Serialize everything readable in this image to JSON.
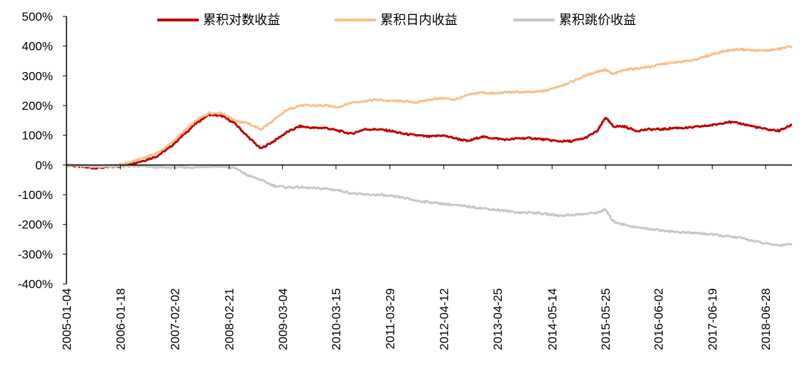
{
  "chart_data": {
    "type": "line",
    "title": "",
    "xlabel": "",
    "ylabel": "",
    "ylim": [
      -400,
      500
    ],
    "y_ticks": [
      "500%",
      "400%",
      "300%",
      "200%",
      "100%",
      "0%",
      "-100%",
      "-200%",
      "-300%",
      "-400%"
    ],
    "y_tick_values": [
      500,
      400,
      300,
      200,
      100,
      0,
      -100,
      -200,
      -300,
      -400
    ],
    "x_range": [
      2005.0,
      2019.0
    ],
    "x_ticks": [
      "2005-01-04",
      "2006-01-18",
      "2007-02-02",
      "2008-02-21",
      "2009-03-04",
      "2010-03-15",
      "2011-03-29",
      "2012-04-12",
      "2013-04-25",
      "2014-05-14",
      "2015-05-25",
      "2016-06-02",
      "2017-06-19",
      "2018-06-28"
    ],
    "x_tick_positions": [
      2005.0,
      2006.04,
      2007.09,
      2008.14,
      2009.17,
      2010.2,
      2011.24,
      2012.28,
      2013.32,
      2014.37,
      2015.4,
      2016.42,
      2017.46,
      2018.49
    ],
    "legend_position": "top",
    "series": [
      {
        "name": "累积对数收益",
        "color": "#c00000",
        "x": [
          2005.0,
          2005.25,
          2005.5,
          2005.75,
          2006.0,
          2006.25,
          2006.5,
          2006.75,
          2007.0,
          2007.25,
          2007.5,
          2007.75,
          2008.0,
          2008.25,
          2008.5,
          2008.75,
          2009.0,
          2009.25,
          2009.5,
          2009.75,
          2010.0,
          2010.25,
          2010.5,
          2010.75,
          2011.0,
          2011.25,
          2011.5,
          2011.75,
          2012.0,
          2012.25,
          2012.5,
          2012.75,
          2013.0,
          2013.25,
          2013.5,
          2013.75,
          2014.0,
          2014.25,
          2014.5,
          2014.75,
          2015.0,
          2015.25,
          2015.4,
          2015.55,
          2015.75,
          2016.0,
          2016.25,
          2016.5,
          2016.75,
          2017.0,
          2017.25,
          2017.5,
          2017.75,
          2018.0,
          2018.25,
          2018.5,
          2018.75,
          2019.0
        ],
        "values": [
          0,
          -5,
          -10,
          -8,
          -5,
          5,
          15,
          30,
          60,
          100,
          140,
          170,
          165,
          140,
          95,
          55,
          80,
          110,
          130,
          125,
          125,
          115,
          105,
          120,
          120,
          115,
          105,
          100,
          95,
          100,
          90,
          80,
          95,
          90,
          85,
          90,
          90,
          85,
          80,
          80,
          90,
          115,
          160,
          130,
          130,
          115,
          120,
          120,
          125,
          125,
          130,
          135,
          145,
          140,
          130,
          120,
          115,
          135
        ]
      },
      {
        "name": "累积日内收益",
        "color": "#f8c08e",
        "x": [
          2005.0,
          2005.25,
          2005.5,
          2005.75,
          2006.0,
          2006.25,
          2006.5,
          2006.75,
          2007.0,
          2007.25,
          2007.5,
          2007.75,
          2008.0,
          2008.25,
          2008.5,
          2008.75,
          2009.0,
          2009.25,
          2009.5,
          2009.75,
          2010.0,
          2010.25,
          2010.5,
          2010.75,
          2011.0,
          2011.25,
          2011.5,
          2011.75,
          2012.0,
          2012.25,
          2012.5,
          2012.75,
          2013.0,
          2013.25,
          2013.5,
          2013.75,
          2014.0,
          2014.25,
          2014.5,
          2014.75,
          2015.0,
          2015.25,
          2015.4,
          2015.55,
          2015.75,
          2016.0,
          2016.25,
          2016.5,
          2016.75,
          2017.0,
          2017.25,
          2017.5,
          2017.75,
          2018.0,
          2018.25,
          2018.5,
          2018.75,
          2019.0
        ],
        "values": [
          0,
          -2,
          -5,
          -3,
          0,
          10,
          25,
          40,
          70,
          110,
          150,
          175,
          175,
          150,
          140,
          120,
          150,
          185,
          200,
          200,
          200,
          195,
          210,
          215,
          220,
          215,
          215,
          210,
          220,
          225,
          220,
          235,
          245,
          240,
          245,
          245,
          245,
          250,
          265,
          280,
          300,
          315,
          320,
          305,
          320,
          325,
          330,
          340,
          345,
          350,
          360,
          375,
          385,
          390,
          385,
          385,
          390,
          400
        ]
      },
      {
        "name": "累积跳价收益",
        "color": "#c8c8c8",
        "x": [
          2005.0,
          2005.25,
          2005.5,
          2005.75,
          2006.0,
          2006.25,
          2006.5,
          2006.75,
          2007.0,
          2007.25,
          2007.5,
          2007.75,
          2008.0,
          2008.25,
          2008.5,
          2008.75,
          2009.0,
          2009.25,
          2009.5,
          2009.75,
          2010.0,
          2010.25,
          2010.5,
          2010.75,
          2011.0,
          2011.25,
          2011.5,
          2011.75,
          2012.0,
          2012.25,
          2012.5,
          2012.75,
          2013.0,
          2013.25,
          2013.5,
          2013.75,
          2014.0,
          2014.25,
          2014.5,
          2014.75,
          2015.0,
          2015.25,
          2015.4,
          2015.55,
          2015.75,
          2016.0,
          2016.25,
          2016.5,
          2016.75,
          2017.0,
          2017.25,
          2017.5,
          2017.75,
          2018.0,
          2018.25,
          2018.5,
          2018.75,
          2019.0
        ],
        "values": [
          0,
          -2,
          -5,
          -5,
          -5,
          -5,
          -5,
          -8,
          -8,
          -8,
          -8,
          -5,
          -5,
          -10,
          -35,
          -50,
          -70,
          -75,
          -75,
          -78,
          -80,
          -85,
          -95,
          -100,
          -100,
          -105,
          -110,
          -120,
          -125,
          -130,
          -135,
          -140,
          -145,
          -150,
          -155,
          -160,
          -160,
          -165,
          -170,
          -168,
          -165,
          -160,
          -150,
          -190,
          -200,
          -210,
          -215,
          -220,
          -225,
          -228,
          -230,
          -235,
          -240,
          -245,
          -255,
          -265,
          -270,
          -265
        ]
      }
    ]
  }
}
